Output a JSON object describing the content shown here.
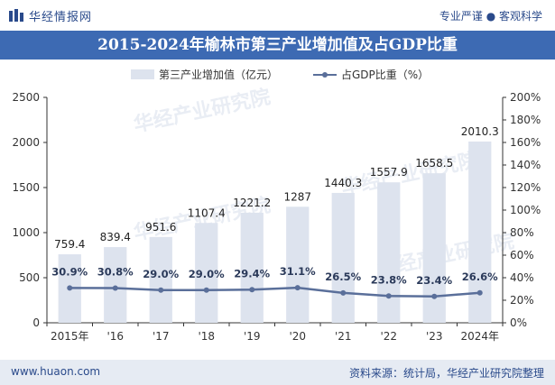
{
  "header": {
    "logo_text": "华经情报网",
    "tagline": "专业严谨 ● 客观科学"
  },
  "chart_title": "2015-2024年榆林市第三产业增加值及占GDP比重",
  "footer": {
    "website": "www.huaon.com",
    "source": "资料来源：统计局，华经产业研究院整理"
  },
  "watermark": "华经产业研究院",
  "colors": {
    "title_bar": "#3d6ab3",
    "bar": "#dde3ee",
    "line": "#5a6f9a",
    "brand": "#2a4a8b"
  },
  "chart_data": {
    "type": "bar",
    "categories": [
      "2015年",
      "'16",
      "'17",
      "'18",
      "'19",
      "'20",
      "'21",
      "'22",
      "'23",
      "2024年"
    ],
    "series": [
      {
        "name": "第三产业增加值（亿元）",
        "type": "bar",
        "axis": "left",
        "values": [
          759.4,
          839.4,
          951.6,
          1107.4,
          1221.2,
          1287,
          1440.3,
          1557.9,
          1658.5,
          2010.3
        ],
        "labels": [
          "759.4",
          "839.4",
          "951.6",
          "1107.4",
          "1221.2",
          "1287",
          "1440.3",
          "1557.9",
          "1658.5",
          "2010.3"
        ]
      },
      {
        "name": "占GDP比重（%）",
        "type": "line",
        "axis": "right",
        "values": [
          30.9,
          30.8,
          29.0,
          29.0,
          29.4,
          31.1,
          26.5,
          23.8,
          23.4,
          26.6
        ],
        "labels": [
          "30.9%",
          "30.8%",
          "29.0%",
          "29.0%",
          "29.4%",
          "31.1%",
          "26.5%",
          "23.8%",
          "23.4%",
          "26.6%"
        ]
      }
    ],
    "y_left": {
      "min": 0,
      "max": 2500,
      "ticks": [
        "0",
        "500",
        "1000",
        "1500",
        "2000",
        "2500"
      ]
    },
    "y_right": {
      "min": 0,
      "max": 200,
      "ticks": [
        "0%",
        "20%",
        "40%",
        "60%",
        "80%",
        "100%",
        "120%",
        "140%",
        "160%",
        "180%",
        "200%"
      ]
    },
    "legend_position": "top-center",
    "grid": false
  }
}
